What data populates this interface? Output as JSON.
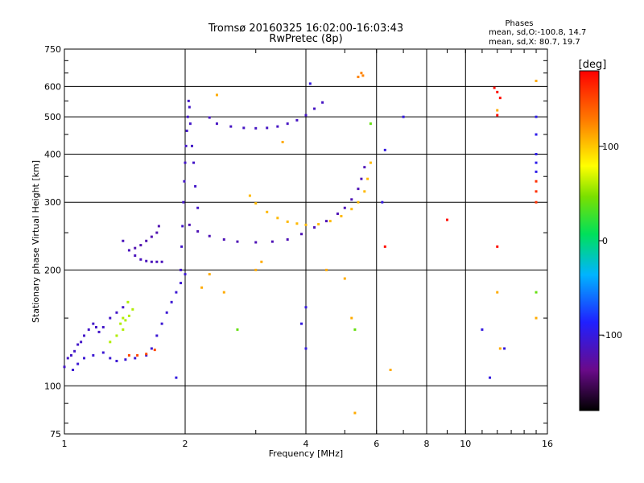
{
  "chart_data": {
    "type": "scatter",
    "title": "Tromsø 20160325 16:02:00-16:03:43",
    "subtitle": "RwPretec (8p)",
    "xlabel": "Frequency [MHz]",
    "ylabel": "Stationary phase Virtual Height [km]",
    "x_scale": "log",
    "y_scale": "log",
    "xlim": [
      1,
      16
    ],
    "ylim": [
      75,
      750
    ],
    "x_ticks": [
      1,
      2,
      4,
      6,
      8,
      10,
      16
    ],
    "x_tick_labels": [
      "1",
      "2",
      "4",
      "6",
      "8",
      "10",
      "16"
    ],
    "y_ticks": [
      75,
      100,
      200,
      300,
      400,
      500,
      600,
      750
    ],
    "y_tick_labels": [
      "75",
      "100",
      "200",
      "300",
      "400",
      "500",
      "600",
      "750"
    ],
    "grid": true,
    "phases_box": {
      "title": "Phases",
      "line1": "mean, sd,O:-100.8, 14.7",
      "line2": "mean, sd,X:  80.7, 19.7"
    },
    "colorbar": {
      "label": "[deg]",
      "range": [
        -180,
        180
      ],
      "ticks": [
        100,
        0,
        -100
      ],
      "tick_labels": [
        "100",
        "0",
        "-100"
      ],
      "colormap": "rainbow (black → purple → blue → cyan → green → yellow → orange → red)"
    },
    "traces": [
      {
        "phase_deg": -110,
        "points": [
          [
            1.0,
            112
          ],
          [
            1.02,
            118
          ],
          [
            1.04,
            120
          ],
          [
            1.06,
            123
          ],
          [
            1.08,
            128
          ],
          [
            1.1,
            130
          ],
          [
            1.12,
            135
          ],
          [
            1.15,
            140
          ],
          [
            1.18,
            145
          ],
          [
            1.2,
            142
          ],
          [
            1.22,
            138
          ],
          [
            1.25,
            142
          ],
          [
            1.3,
            150
          ],
          [
            1.35,
            155
          ],
          [
            1.4,
            160
          ]
        ]
      },
      {
        "phase_deg": -105,
        "points": [
          [
            1.05,
            110
          ],
          [
            1.08,
            114
          ],
          [
            1.12,
            118
          ],
          [
            1.18,
            120
          ],
          [
            1.25,
            122
          ],
          [
            1.3,
            118
          ],
          [
            1.35,
            116
          ],
          [
            1.42,
            117
          ],
          [
            1.5,
            118
          ],
          [
            1.6,
            120
          ],
          [
            1.65,
            125
          ],
          [
            1.7,
            135
          ],
          [
            1.75,
            145
          ],
          [
            1.8,
            155
          ],
          [
            1.85,
            165
          ],
          [
            1.9,
            175
          ],
          [
            1.95,
            185
          ],
          [
            2.0,
            195
          ]
        ]
      },
      {
        "phase_deg": 150,
        "points": [
          [
            1.45,
            120
          ],
          [
            1.52,
            120
          ],
          [
            1.6,
            121
          ],
          [
            1.68,
            124
          ]
        ]
      },
      {
        "phase_deg": 60,
        "points": [
          [
            1.3,
            130
          ],
          [
            1.35,
            135
          ],
          [
            1.4,
            140
          ],
          [
            1.42,
            148
          ],
          [
            1.45,
            152
          ],
          [
            1.48,
            158
          ],
          [
            1.4,
            150
          ],
          [
            1.38,
            145
          ],
          [
            1.44,
            165
          ]
        ]
      },
      {
        "phase_deg": -115,
        "points": [
          [
            1.4,
            238
          ],
          [
            1.45,
            225
          ],
          [
            1.5,
            218
          ],
          [
            1.55,
            213
          ],
          [
            1.6,
            211
          ],
          [
            1.65,
            210
          ],
          [
            1.7,
            210
          ],
          [
            1.75,
            210
          ]
        ]
      },
      {
        "phase_deg": -120,
        "points": [
          [
            1.5,
            228
          ],
          [
            1.55,
            232
          ],
          [
            1.6,
            238
          ],
          [
            1.65,
            244
          ],
          [
            1.7,
            250
          ],
          [
            1.72,
            260
          ]
        ]
      },
      {
        "phase_deg": -110,
        "points": [
          [
            1.95,
            200
          ],
          [
            1.96,
            230
          ],
          [
            1.97,
            260
          ],
          [
            1.98,
            300
          ],
          [
            1.99,
            340
          ],
          [
            2.0,
            380
          ],
          [
            2.01,
            420
          ],
          [
            2.02,
            460
          ],
          [
            2.03,
            500
          ],
          [
            2.04,
            550
          ],
          [
            2.05,
            530
          ],
          [
            2.06,
            480
          ],
          [
            2.08,
            420
          ],
          [
            2.1,
            380
          ],
          [
            2.12,
            330
          ],
          [
            2.15,
            290
          ]
        ]
      },
      {
        "phase_deg": -118,
        "points": [
          [
            2.05,
            262
          ],
          [
            2.15,
            252
          ],
          [
            2.3,
            245
          ],
          [
            2.5,
            240
          ],
          [
            2.7,
            237
          ],
          [
            3.0,
            236
          ],
          [
            3.3,
            237
          ],
          [
            3.6,
            240
          ],
          [
            3.9,
            248
          ],
          [
            4.2,
            258
          ],
          [
            4.5,
            268
          ],
          [
            4.8,
            280
          ],
          [
            5.0,
            290
          ],
          [
            5.2,
            305
          ],
          [
            5.4,
            325
          ],
          [
            5.5,
            345
          ],
          [
            5.6,
            370
          ]
        ]
      },
      {
        "phase_deg": 105,
        "points": [
          [
            2.9,
            312
          ],
          [
            3.0,
            298
          ],
          [
            3.2,
            283
          ],
          [
            3.4,
            273
          ],
          [
            3.6,
            267
          ],
          [
            3.8,
            264
          ],
          [
            4.0,
            262
          ],
          [
            4.3,
            263
          ],
          [
            4.6,
            268
          ],
          [
            4.9,
            276
          ],
          [
            5.2,
            288
          ],
          [
            5.4,
            300
          ],
          [
            5.6,
            320
          ],
          [
            5.7,
            345
          ],
          [
            5.8,
            380
          ]
        ]
      },
      {
        "phase_deg": -112,
        "points": [
          [
            2.3,
            498
          ],
          [
            2.4,
            480
          ],
          [
            2.6,
            472
          ],
          [
            2.8,
            468
          ],
          [
            3.0,
            467
          ],
          [
            3.2,
            468
          ],
          [
            3.4,
            472
          ],
          [
            3.6,
            480
          ],
          [
            3.8,
            490
          ],
          [
            4.0,
            505
          ],
          [
            4.2,
            525
          ],
          [
            4.4,
            545
          ]
        ]
      },
      {
        "phase_deg": 125,
        "points": [
          [
            5.4,
            635
          ],
          [
            5.5,
            650
          ],
          [
            5.55,
            640
          ]
        ]
      },
      {
        "phase_deg": -95,
        "points": [
          [
            15.0,
            500
          ],
          [
            15.0,
            450
          ],
          [
            15.0,
            400
          ],
          [
            15.0,
            380
          ],
          [
            15.0,
            360
          ]
        ]
      },
      {
        "phase_deg": 160,
        "points": [
          [
            15.0,
            340
          ],
          [
            15.0,
            320
          ],
          [
            15.0,
            300
          ]
        ]
      },
      {
        "phase_deg": 110,
        "points": [
          [
            2.2,
            180
          ],
          [
            2.3,
            195
          ],
          [
            3.0,
            200
          ],
          [
            3.1,
            210
          ],
          [
            2.5,
            175
          ],
          [
            4.5,
            200
          ],
          [
            5.0,
            190
          ],
          [
            5.2,
            150
          ],
          [
            6.5,
            110
          ],
          [
            5.3,
            85
          ],
          [
            12.0,
            175
          ],
          [
            12.2,
            125
          ],
          [
            2.4,
            570
          ],
          [
            3.5,
            430
          ],
          [
            12.0,
            520
          ],
          [
            15.0,
            620
          ],
          [
            15.0,
            150
          ]
        ]
      },
      {
        "phase_deg": -100,
        "points": [
          [
            1.9,
            105
          ],
          [
            4.0,
            125
          ],
          [
            3.9,
            145
          ],
          [
            4.0,
            160
          ],
          [
            6.3,
            410
          ],
          [
            7.0,
            500
          ],
          [
            6.2,
            300
          ],
          [
            11.0,
            140
          ],
          [
            12.5,
            125
          ],
          [
            11.5,
            105
          ],
          [
            4.1,
            610
          ]
        ]
      },
      {
        "phase_deg": 40,
        "points": [
          [
            5.3,
            140
          ],
          [
            5.8,
            480
          ],
          [
            2.7,
            140
          ],
          [
            15.0,
            175
          ]
        ]
      },
      {
        "phase_deg": 175,
        "points": [
          [
            9.0,
            270
          ],
          [
            12.0,
            230
          ],
          [
            11.8,
            595
          ],
          [
            12.0,
            580
          ],
          [
            12.2,
            560
          ],
          [
            12.0,
            505
          ],
          [
            6.3,
            230
          ]
        ]
      }
    ]
  }
}
